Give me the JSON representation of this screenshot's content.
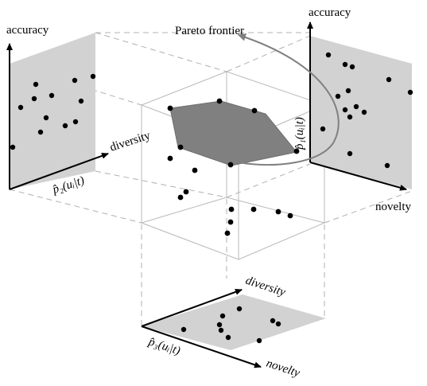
{
  "labels": {
    "pareto_frontier": "Pareto frontier",
    "left_accuracy": "accuracy",
    "left_diversity": "diversity",
    "left_p2": "p̂₂(uᵢ|t)",
    "right_accuracy": "accuracy",
    "right_novelty": "novelty",
    "right_p1": "p̂₁(uᵢ|t)",
    "bottom_diversity": "diversity",
    "bottom_novelty": "novelty",
    "bottom_p3": "p̂₃(uᵢ|t)"
  },
  "icons": {
    "arrowhead": "arrowhead-icon",
    "point": "data-point-icon"
  },
  "colors": {
    "panel": "#d2d2d2",
    "frontier": "#808080",
    "guide": "#b0b0b0",
    "dot": "#000000"
  }
}
